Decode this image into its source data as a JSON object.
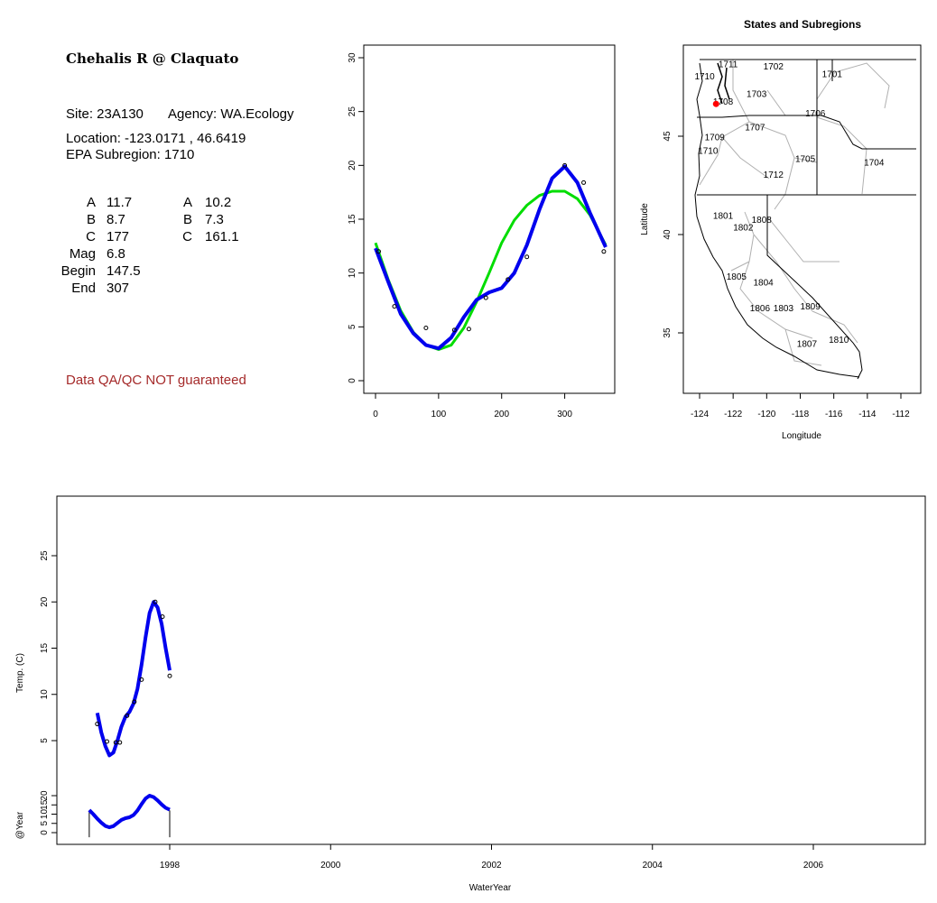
{
  "site": {
    "title": "Chehalis R @ Claquato",
    "site_line": "Site: 23A130",
    "agency_line": "Agency: WA.Ecology",
    "location_line": "Location: -123.0171 , 46.6419",
    "subregion_line": "EPA Subregion: 1710",
    "qa_note": "Data QA/QC NOT guaranteed"
  },
  "params": {
    "left": [
      {
        "label": "A",
        "value": "11.7"
      },
      {
        "label": "B",
        "value": "8.7"
      },
      {
        "label": "C",
        "value": "177"
      },
      {
        "label": "Mag",
        "value": "6.8"
      },
      {
        "label": "Begin",
        "value": "147.5"
      },
      {
        "label": "End",
        "value": "307"
      }
    ],
    "right": [
      {
        "label": "A",
        "value": "10.2"
      },
      {
        "label": "B",
        "value": "7.3"
      },
      {
        "label": "C",
        "value": "161.1"
      }
    ]
  },
  "colors": {
    "green_fit": "#00dd00",
    "blue_fit": "#0000ee",
    "site_marker": "#ff0000",
    "qa_text": "#a52a2a",
    "state_lines": "#000000",
    "subregion_lines": "#b0b0b0"
  },
  "chart_data": [
    {
      "type": "scatter",
      "title": "",
      "xlabel": "",
      "ylabel": "",
      "xlim": [
        0,
        365
      ],
      "ylim": [
        0,
        30
      ],
      "xticks": [
        "0",
        "100",
        "200",
        "300"
      ],
      "yticks": [
        "0",
        "5",
        "10",
        "15",
        "20",
        "25",
        "30"
      ],
      "points": [
        [
          5,
          12.0
        ],
        [
          30,
          6.9
        ],
        [
          80,
          4.9
        ],
        [
          125,
          4.7
        ],
        [
          148,
          4.8
        ],
        [
          175,
          7.7
        ],
        [
          210,
          9.4
        ],
        [
          240,
          11.5
        ],
        [
          300,
          20.0
        ],
        [
          330,
          18.4
        ],
        [
          362,
          12.0
        ]
      ],
      "series": [
        {
          "color": "green",
          "values": [
            [
              0,
              12.8
            ],
            [
              20,
              9.4
            ],
            [
              40,
              6.5
            ],
            [
              60,
              4.5
            ],
            [
              80,
              3.3
            ],
            [
              100,
              2.9
            ],
            [
              120,
              3.3
            ],
            [
              140,
              4.9
            ],
            [
              160,
              7.3
            ],
            [
              180,
              10.0
            ],
            [
              200,
              12.8
            ],
            [
              220,
              14.9
            ],
            [
              240,
              16.3
            ],
            [
              260,
              17.2
            ],
            [
              280,
              17.6
            ],
            [
              300,
              17.6
            ],
            [
              320,
              16.9
            ],
            [
              340,
              15.4
            ],
            [
              365,
              12.6
            ]
          ]
        },
        {
          "color": "blue",
          "values": [
            [
              0,
              12.3
            ],
            [
              20,
              9.2
            ],
            [
              40,
              6.2
            ],
            [
              60,
              4.4
            ],
            [
              80,
              3.3
            ],
            [
              100,
              3.0
            ],
            [
              120,
              4.0
            ],
            [
              140,
              5.9
            ],
            [
              160,
              7.5
            ],
            [
              180,
              8.2
            ],
            [
              200,
              8.6
            ],
            [
              220,
              10.0
            ],
            [
              240,
              12.6
            ],
            [
              260,
              15.9
            ],
            [
              280,
              18.8
            ],
            [
              300,
              19.9
            ],
            [
              320,
              18.4
            ],
            [
              340,
              15.6
            ],
            [
              365,
              12.4
            ]
          ]
        }
      ]
    },
    {
      "type": "map",
      "title": "States and Subregions",
      "xlabel": "Longitude",
      "ylabel": "Latitude",
      "xlim": [
        -125,
        -111
      ],
      "ylim": [
        32.5,
        49.5
      ],
      "xticks": [
        "-124",
        "-122",
        "-120",
        "-118",
        "-116",
        "-114",
        "-112"
      ],
      "yticks": [
        "35",
        "40",
        "45"
      ],
      "labels": [
        {
          "text": "1711",
          "lon": -122.3,
          "lat": 48.5
        },
        {
          "text": "1702",
          "lon": -119.6,
          "lat": 48.4
        },
        {
          "text": "1701",
          "lon": -116.1,
          "lat": 48.0
        },
        {
          "text": "1710",
          "lon": -123.7,
          "lat": 47.9
        },
        {
          "text": "1703",
          "lon": -120.6,
          "lat": 47.0
        },
        {
          "text": "1708",
          "lon": -122.6,
          "lat": 46.6
        },
        {
          "text": "1706",
          "lon": -117.1,
          "lat": 46.0
        },
        {
          "text": "1707",
          "lon": -120.7,
          "lat": 45.3
        },
        {
          "text": "1709",
          "lon": -123.1,
          "lat": 44.8
        },
        {
          "text": "1710",
          "lon": -123.5,
          "lat": 44.1
        },
        {
          "text": "1705",
          "lon": -117.7,
          "lat": 43.7
        },
        {
          "text": "1704",
          "lon": -113.6,
          "lat": 43.5
        },
        {
          "text": "1712",
          "lon": -119.6,
          "lat": 42.9
        },
        {
          "text": "1801",
          "lon": -122.6,
          "lat": 40.8
        },
        {
          "text": "1808",
          "lon": -120.3,
          "lat": 40.6
        },
        {
          "text": "1802",
          "lon": -121.4,
          "lat": 40.2
        },
        {
          "text": "1805",
          "lon": -121.8,
          "lat": 37.7
        },
        {
          "text": "1804",
          "lon": -120.2,
          "lat": 37.4
        },
        {
          "text": "1809",
          "lon": -117.4,
          "lat": 36.2
        },
        {
          "text": "1806",
          "lon": -120.4,
          "lat": 36.1
        },
        {
          "text": "1803",
          "lon": -119.0,
          "lat": 36.1
        },
        {
          "text": "1810",
          "lon": -115.7,
          "lat": 34.5
        },
        {
          "text": "1807",
          "lon": -117.6,
          "lat": 34.3
        }
      ],
      "site": {
        "lon": -123.0171,
        "lat": 46.6419
      }
    },
    {
      "type": "scatter",
      "title": "",
      "xlabel": "WaterYear",
      "ylabel": "Temp. (C)",
      "xlim": [
        1996.7,
        2007.4
      ],
      "ylim": [
        1.3,
        30
      ],
      "xticks": [
        "1998",
        "2000",
        "2002",
        "2004",
        "2006"
      ],
      "yticks": [
        "5",
        "10",
        "15",
        "20",
        "25"
      ],
      "points": [
        [
          1997.1,
          6.8
        ],
        [
          1997.22,
          4.9
        ],
        [
          1997.33,
          4.8
        ],
        [
          1997.38,
          4.8
        ],
        [
          1997.47,
          7.7
        ],
        [
          1997.56,
          9.2
        ],
        [
          1997.65,
          11.6
        ],
        [
          1997.82,
          20.0
        ],
        [
          1997.91,
          18.4
        ],
        [
          1998.0,
          12.0
        ]
      ],
      "series": [
        {
          "color": "blue",
          "values": [
            [
              1997.1,
              8.0
            ],
            [
              1997.15,
              5.9
            ],
            [
              1997.2,
              4.4
            ],
            [
              1997.25,
              3.4
            ],
            [
              1997.3,
              3.7
            ],
            [
              1997.35,
              5.0
            ],
            [
              1997.4,
              6.5
            ],
            [
              1997.45,
              7.6
            ],
            [
              1997.5,
              8.1
            ],
            [
              1997.55,
              9.0
            ],
            [
              1997.6,
              10.6
            ],
            [
              1997.65,
              13.2
            ],
            [
              1997.7,
              16.2
            ],
            [
              1997.75,
              18.8
            ],
            [
              1997.8,
              20.0
            ],
            [
              1997.85,
              19.4
            ],
            [
              1997.9,
              17.6
            ],
            [
              1997.95,
              15.0
            ],
            [
              1998.0,
              12.6
            ]
          ]
        }
      ]
    },
    {
      "type": "line",
      "title": "",
      "xlabel": "",
      "ylabel": "@Year",
      "ylim": [
        -3,
        28
      ],
      "yticks": [
        "0",
        "5",
        "10",
        "15",
        "20"
      ],
      "series": [
        {
          "color": "blue",
          "values": [
            [
              1997.0,
              12.2
            ],
            [
              1997.05,
              10.0
            ],
            [
              1997.1,
              7.5
            ],
            [
              1997.15,
              5.4
            ],
            [
              1997.2,
              3.6
            ],
            [
              1997.25,
              2.9
            ],
            [
              1997.3,
              3.5
            ],
            [
              1997.35,
              5.2
            ],
            [
              1997.4,
              6.9
            ],
            [
              1997.45,
              7.8
            ],
            [
              1997.5,
              8.3
            ],
            [
              1997.55,
              9.5
            ],
            [
              1997.6,
              12.0
            ],
            [
              1997.65,
              15.4
            ],
            [
              1997.7,
              18.5
            ],
            [
              1997.75,
              20.0
            ],
            [
              1997.8,
              19.2
            ],
            [
              1997.85,
              17.4
            ],
            [
              1997.9,
              15.2
            ],
            [
              1997.95,
              13.4
            ],
            [
              1998.0,
              12.4
            ]
          ]
        }
      ],
      "markers": [
        1997.0,
        1998.0
      ]
    }
  ]
}
